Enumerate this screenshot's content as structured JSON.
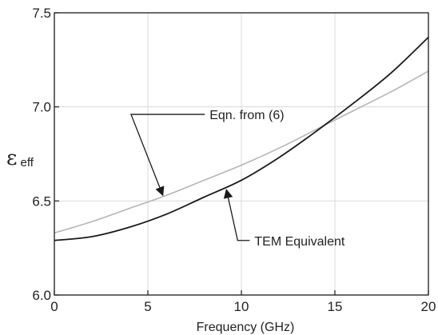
{
  "chart_data": {
    "type": "line",
    "xlabel": "Frequency (GHz)",
    "ylabel_main": "ε",
    "ylabel_sub": "eff",
    "xlim": [
      0,
      20
    ],
    "ylim": [
      6.0,
      7.5
    ],
    "x_ticks": [
      0,
      5,
      10,
      15,
      20
    ],
    "x_tick_labels": [
      "0",
      "5",
      "10",
      "15",
      "20"
    ],
    "y_ticks": [
      6.0,
      6.5,
      7.0,
      7.5
    ],
    "y_tick_labels": [
      "6.0",
      "6.5",
      "7.0",
      "7.5"
    ],
    "grid": true,
    "series": [
      {
        "name": "Eqn. from (6)",
        "color": "#b5b5b5",
        "x": [
          0,
          2,
          4,
          6,
          8,
          10,
          12,
          14,
          16,
          18,
          20
        ],
        "values": [
          6.33,
          6.39,
          6.46,
          6.53,
          6.61,
          6.69,
          6.78,
          6.88,
          6.98,
          7.08,
          7.19
        ]
      },
      {
        "name": "TEM Equivalent",
        "color": "#1a1a1a",
        "x": [
          0,
          2,
          4,
          6,
          8,
          10,
          12,
          14,
          16,
          18,
          20
        ],
        "values": [
          6.29,
          6.31,
          6.36,
          6.43,
          6.52,
          6.61,
          6.73,
          6.87,
          7.02,
          7.18,
          7.37
        ]
      }
    ],
    "annotations": [
      {
        "text": "Eqn. from (6)",
        "series": 0,
        "label_at": [
          8.3,
          6.96
        ],
        "arrow_to": [
          5.8,
          6.53
        ],
        "bend_at": [
          4.1,
          6.96
        ]
      },
      {
        "text": "TEM Equivalent",
        "series": 1,
        "label_at": [
          10.7,
          6.29
        ],
        "arrow_to": [
          9.2,
          6.56
        ],
        "bend_at": [
          9.8,
          6.29
        ]
      }
    ]
  }
}
